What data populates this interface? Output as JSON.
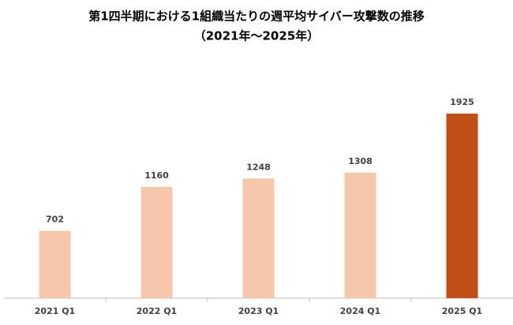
{
  "chart_data": {
    "type": "bar",
    "title": "第1四半期における1組織当たりの週平均サイバー攻撃数の推移",
    "subtitle": "（2021年～2025年）",
    "categories": [
      "2021 Q1",
      "2022 Q1",
      "2023 Q1",
      "2024 Q1",
      "2025 Q1"
    ],
    "values": [
      702,
      1160,
      1248,
      1308,
      1925
    ],
    "colors": [
      "#f7c7ac",
      "#f7c7ac",
      "#f7c7ac",
      "#f7c7ac",
      "#c14f17"
    ]
  }
}
